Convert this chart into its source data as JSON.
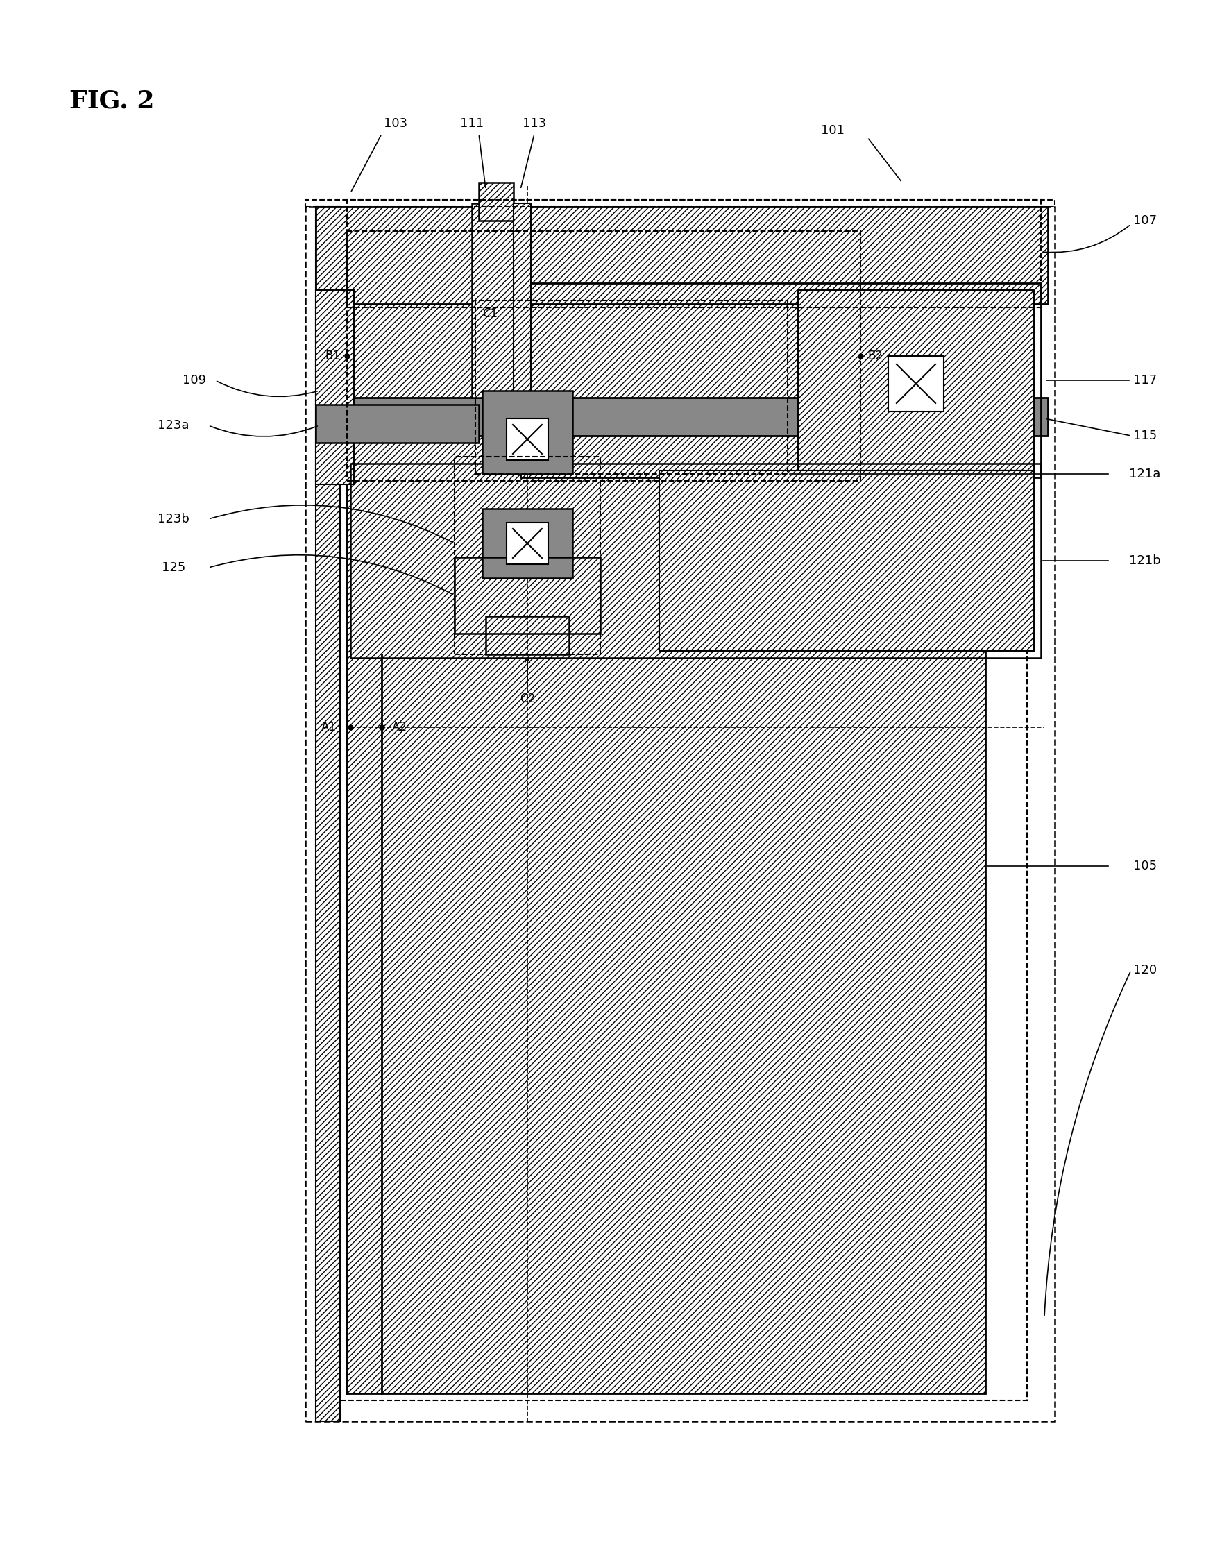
{
  "title": "FIG. 2",
  "bg_color": "#ffffff",
  "line_color": "#000000",
  "hatch_diagonal": "////",
  "hatch_light": "////",
  "gray_fill": "#aaaaaa",
  "labels": {
    "fig": "FIG. 2",
    "101": "101",
    "103": "103",
    "105": "105",
    "107": "107",
    "109": "109",
    "111": "111",
    "113": "113",
    "115": "115",
    "117": "117",
    "120": "120",
    "121a": "121a",
    "121b": "121b",
    "123a": "123a",
    "123b": "123b",
    "125": "125",
    "A1": "A1",
    "A2": "A2",
    "B1": "B1",
    "B2": "B2",
    "C1": "C1",
    "C2": "C2"
  }
}
